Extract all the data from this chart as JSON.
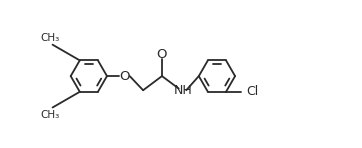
{
  "background_color": "#ffffff",
  "line_color": "#2a2a2a",
  "line_width": 1.3,
  "font_size": 8.5,
  "fig_width": 3.62,
  "fig_height": 1.48,
  "dpi": 100,
  "xlim": [
    0.0,
    7.2
  ],
  "ylim": [
    -0.5,
    3.0
  ]
}
